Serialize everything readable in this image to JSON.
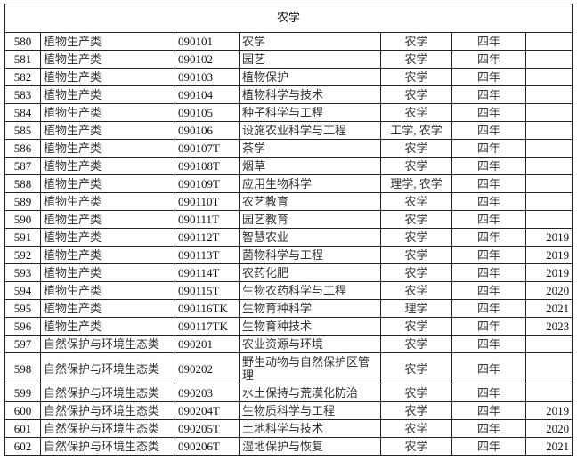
{
  "title": "农学",
  "rows": [
    {
      "no": "580",
      "category": "植物生产类",
      "code": "090101",
      "major": "农学",
      "degree": "农学",
      "duration": "四年",
      "year": ""
    },
    {
      "no": "581",
      "category": "植物生产类",
      "code": "090102",
      "major": "园艺",
      "degree": "农学",
      "duration": "四年",
      "year": ""
    },
    {
      "no": "582",
      "category": "植物生产类",
      "code": "090103",
      "major": "植物保护",
      "degree": "农学",
      "duration": "四年",
      "year": ""
    },
    {
      "no": "583",
      "category": "植物生产类",
      "code": "090104",
      "major": "植物科学与技术",
      "degree": "农学",
      "duration": "四年",
      "year": ""
    },
    {
      "no": "584",
      "category": "植物生产类",
      "code": "090105",
      "major": "种子科学与工程",
      "degree": "农学",
      "duration": "四年",
      "year": ""
    },
    {
      "no": "585",
      "category": "植物生产类",
      "code": "090106",
      "major": "设施农业科学与工程",
      "degree": "工学, 农学",
      "duration": "四年",
      "year": ""
    },
    {
      "no": "586",
      "category": "植物生产类",
      "code": "090107T",
      "major": "茶学",
      "degree": "农学",
      "duration": "四年",
      "year": ""
    },
    {
      "no": "587",
      "category": "植物生产类",
      "code": "090108T",
      "major": "烟草",
      "degree": "农学",
      "duration": "四年",
      "year": ""
    },
    {
      "no": "588",
      "category": "植物生产类",
      "code": "090109T",
      "major": "应用生物科学",
      "degree": "理学, 农学",
      "duration": "四年",
      "year": ""
    },
    {
      "no": "589",
      "category": "植物生产类",
      "code": "090110T",
      "major": "农艺教育",
      "degree": "农学",
      "duration": "四年",
      "year": ""
    },
    {
      "no": "590",
      "category": "植物生产类",
      "code": "090111T",
      "major": "园艺教育",
      "degree": "农学",
      "duration": "四年",
      "year": ""
    },
    {
      "no": "591",
      "category": "植物生产类",
      "code": "090112T",
      "major": "智慧农业",
      "degree": "农学",
      "duration": "四年",
      "year": "2019"
    },
    {
      "no": "592",
      "category": "植物生产类",
      "code": "090113T",
      "major": "菌物科学与工程",
      "degree": "农学",
      "duration": "四年",
      "year": "2019"
    },
    {
      "no": "593",
      "category": "植物生产类",
      "code": "090114T",
      "major": "农药化肥",
      "degree": "农学",
      "duration": "四年",
      "year": "2019"
    },
    {
      "no": "594",
      "category": "植物生产类",
      "code": "090115T",
      "major": "生物农药科学与工程",
      "degree": "农学",
      "duration": "四年",
      "year": "2020"
    },
    {
      "no": "595",
      "category": "植物生产类",
      "code": "090116TK",
      "major": "生物育种科学",
      "degree": "理学",
      "duration": "四年",
      "year": "2021"
    },
    {
      "no": "596",
      "category": "植物生产类",
      "code": "090117TK",
      "major": "生物育种技术",
      "degree": "农学",
      "duration": "四年",
      "year": "2023"
    },
    {
      "no": "597",
      "category": "自然保护与环境生态类",
      "code": "090201",
      "major": "农业资源与环境",
      "degree": "农学",
      "duration": "四年",
      "year": ""
    },
    {
      "no": "598",
      "category": "自然保护与环境生态类",
      "code": "090202",
      "major": "野生动物与自然保护区管理",
      "degree": "农学",
      "duration": "四年",
      "year": ""
    },
    {
      "no": "599",
      "category": "自然保护与环境生态类",
      "code": "090203",
      "major": "水土保持与荒漠化防治",
      "degree": "农学",
      "duration": "四年",
      "year": ""
    },
    {
      "no": "600",
      "category": "自然保护与环境生态类",
      "code": "090204T",
      "major": "生物质科学与工程",
      "degree": "农学",
      "duration": "四年",
      "year": "2019"
    },
    {
      "no": "601",
      "category": "自然保护与环境生态类",
      "code": "090205T",
      "major": "土地科学与技术",
      "degree": "农学",
      "duration": "四年",
      "year": "2020"
    },
    {
      "no": "602",
      "category": "自然保护与环境生态类",
      "code": "090206T",
      "major": "湿地保护与恢复",
      "degree": "农学",
      "duration": "四年",
      "year": "2021"
    }
  ]
}
